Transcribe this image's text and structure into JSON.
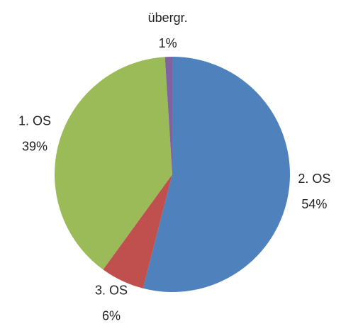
{
  "chart_data": {
    "type": "pie",
    "categories": [
      "2. OS",
      "3. OS",
      "1. OS",
      "übergr."
    ],
    "values": [
      54,
      6,
      39,
      1
    ],
    "value_labels": [
      "54%",
      "6%",
      "39%",
      "1%"
    ],
    "colors": [
      "#4f81bd",
      "#c0504d",
      "#9bbb59",
      "#8064a2"
    ]
  }
}
